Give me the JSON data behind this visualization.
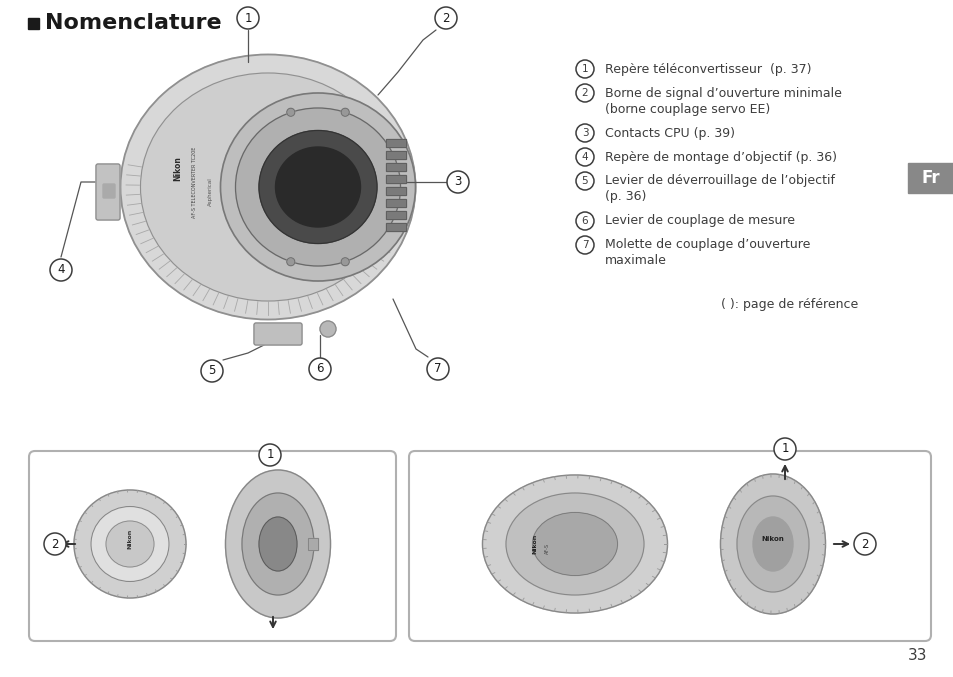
{
  "title": "Nomenclature",
  "bg": "#ffffff",
  "tc": "#3d3d3d",
  "dark": "#1a1a1a",
  "gray1": "#d0d0d0",
  "gray2": "#b8b8b8",
  "gray3": "#a0a0a0",
  "gray4": "#888888",
  "gray5": "#606060",
  "gray6": "#404040",
  "fr_bg": "#888888",
  "page_num": "33",
  "items": [
    {
      "n": 1,
      "lines": [
        "Repère téléconvertisseur  (p. 37)"
      ]
    },
    {
      "n": 2,
      "lines": [
        "Borne de signal d’ouverture minimale",
        "(borne couplage servo EE)"
      ]
    },
    {
      "n": 3,
      "lines": [
        "Contacts CPU (p. 39)"
      ]
    },
    {
      "n": 4,
      "lines": [
        "Repère de montage d’objectif (p. 36)"
      ]
    },
    {
      "n": 5,
      "lines": [
        "Levier de déverrouillage de l’objectif",
        "(p. 36)"
      ]
    },
    {
      "n": 6,
      "lines": [
        "Levier de couplage de mesure"
      ]
    },
    {
      "n": 7,
      "lines": [
        "Molette de couplage d’ouverture",
        "maximale"
      ]
    }
  ],
  "ref_note": "( ): page de référence"
}
